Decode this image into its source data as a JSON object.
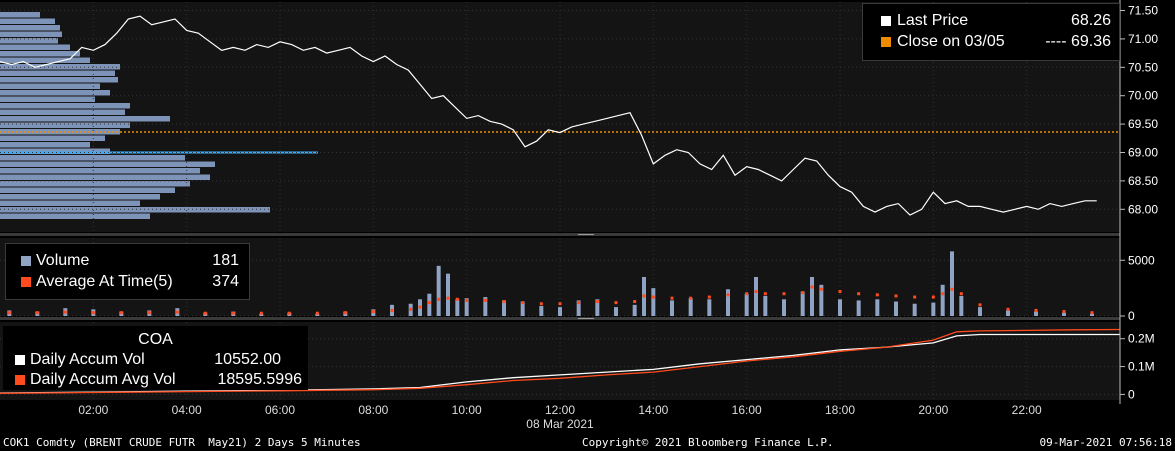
{
  "colors": {
    "background": "#000000",
    "panel_background": "#141414",
    "price_line": "#ffffff",
    "close_line": "#f08c00",
    "volume_bar": "#8fa3c4",
    "volume_avg": "#ff4b1e",
    "accum_vol": "#ffffff",
    "accum_avg": "#ff4b1e",
    "highlight": "#3ab0ff"
  },
  "legend_price": {
    "last_label": "Last Price",
    "last_value": "68.26",
    "close_label": "Close on 03/05",
    "close_value": "---- 69.36"
  },
  "legend_volume": {
    "volume_label": "Volume",
    "volume_value": "181",
    "avg_label": "Average At Time(5)",
    "avg_value": "374"
  },
  "legend_accum": {
    "title": "COA",
    "vol_label": "Daily Accum Vol",
    "vol_value": "10552.00",
    "avg_label": "Daily Accum Avg Vol",
    "avg_value": "18595.5996"
  },
  "footer": {
    "security": "COK1 Comdty (BRENT CRUDE FUTR  May21) 2 Days 5 Minutes",
    "copyright": "Copyright© 2021 Bloomberg Finance L.P.",
    "timestamp": "09-Mar-2021 07:56:18"
  },
  "chart_data": [
    {
      "type": "line",
      "panel": "price",
      "x_tick_labels": [
        "02:00",
        "04:00",
        "06:00",
        "08:00",
        "10:00",
        "12:00",
        "14:00",
        "16:00",
        "18:00",
        "20:00",
        "22:00"
      ],
      "x_date_label": "08 Mar 2021",
      "y_tick_labels": [
        "71.50",
        "71.00",
        "70.50",
        "70.00",
        "69.50",
        "69.00",
        "68.50",
        "68.00"
      ],
      "ylim": [
        67.6,
        71.65
      ],
      "xlim": [
        0,
        24
      ],
      "close_value": 69.36,
      "series": [
        {
          "name": "Last Price",
          "x": [
            0,
            0.25,
            0.5,
            0.75,
            1.0,
            1.25,
            1.5,
            1.75,
            2.0,
            2.25,
            2.5,
            2.75,
            3.0,
            3.25,
            3.5,
            3.75,
            4.0,
            4.25,
            4.5,
            4.75,
            5.0,
            5.25,
            5.5,
            5.75,
            6.0,
            6.25,
            6.5,
            6.75,
            7.0,
            7.25,
            7.5,
            7.75,
            8.0,
            8.25,
            8.5,
            8.75,
            9.0,
            9.25,
            9.5,
            9.75,
            10.0,
            10.25,
            10.5,
            10.75,
            11.0,
            11.25,
            11.5,
            11.75,
            12.0,
            12.25,
            12.5,
            12.75,
            13.0,
            13.25,
            13.5,
            13.75,
            14.0,
            14.25,
            14.5,
            14.75,
            15.0,
            15.25,
            15.5,
            15.75,
            16.0,
            16.25,
            16.5,
            16.75,
            17.0,
            17.25,
            17.5,
            17.75,
            18.0,
            18.25,
            18.5,
            18.75,
            19.0,
            19.25,
            19.5,
            19.75,
            20.0,
            20.25,
            20.5,
            20.75,
            21.0,
            21.25,
            21.5,
            21.75,
            22.0,
            22.25,
            22.5,
            22.75,
            23.0,
            23.25,
            23.5
          ],
          "values": [
            70.6,
            70.55,
            70.6,
            70.5,
            70.55,
            70.6,
            70.65,
            70.85,
            70.8,
            70.9,
            71.1,
            71.35,
            71.4,
            71.25,
            71.3,
            71.35,
            71.15,
            71.1,
            70.95,
            70.8,
            70.85,
            70.8,
            70.9,
            70.85,
            70.95,
            70.9,
            70.8,
            70.85,
            70.75,
            70.8,
            70.85,
            70.7,
            70.6,
            70.7,
            70.55,
            70.45,
            70.2,
            69.95,
            70.0,
            69.8,
            69.6,
            69.65,
            69.55,
            69.5,
            69.4,
            69.1,
            69.2,
            69.4,
            69.35,
            69.45,
            69.5,
            69.55,
            69.6,
            69.65,
            69.7,
            69.3,
            68.8,
            68.95,
            69.05,
            69.0,
            68.8,
            68.7,
            68.95,
            68.6,
            68.75,
            68.7,
            68.6,
            68.5,
            68.7,
            68.9,
            68.85,
            68.6,
            68.4,
            68.3,
            68.05,
            67.95,
            68.05,
            68.1,
            67.9,
            68.0,
            68.3,
            68.1,
            68.15,
            68.05,
            68.05,
            68.0,
            67.95,
            68.0,
            68.05,
            68.0,
            68.1,
            68.05,
            68.1,
            68.15,
            68.15
          ]
        }
      ]
    },
    {
      "type": "bar",
      "panel": "volume",
      "y_tick_labels": [
        "5000",
        "0"
      ],
      "ylim": [
        0,
        7000
      ],
      "series": [
        {
          "name": "Volume",
          "x": [
            0.2,
            0.8,
            1.4,
            2.0,
            2.6,
            3.2,
            3.8,
            4.4,
            5.0,
            5.6,
            6.2,
            6.8,
            7.4,
            8.0,
            8.4,
            8.8,
            9.0,
            9.2,
            9.4,
            9.6,
            9.8,
            10.0,
            10.4,
            10.8,
            11.2,
            11.6,
            12.0,
            12.4,
            12.8,
            13.2,
            13.6,
            13.8,
            14.0,
            14.4,
            14.8,
            15.2,
            15.6,
            16.0,
            16.2,
            16.4,
            16.8,
            17.2,
            17.4,
            17.6,
            18.0,
            18.4,
            18.8,
            19.2,
            19.6,
            20.0,
            20.2,
            20.4,
            20.6,
            21.0,
            21.6,
            22.2,
            22.8,
            23.4
          ],
          "values": [
            500,
            400,
            700,
            600,
            400,
            500,
            700,
            300,
            400,
            200,
            300,
            200,
            400,
            600,
            1000,
            1100,
            1500,
            2000,
            4500,
            3800,
            1500,
            1600,
            1700,
            1400,
            1300,
            900,
            800,
            1400,
            1500,
            800,
            1000,
            3500,
            2500,
            1400,
            1600,
            1500,
            2400,
            2000,
            3500,
            1800,
            1500,
            2200,
            3500,
            2800,
            1500,
            1400,
            1500,
            1300,
            1100,
            1200,
            2800,
            5800,
            1800,
            800,
            500,
            400,
            300,
            200
          ]
        },
        {
          "name": "Average At Time(5)",
          "x": [
            0.2,
            0.8,
            1.4,
            2.0,
            2.6,
            3.2,
            3.8,
            4.4,
            5.0,
            5.6,
            6.2,
            6.8,
            7.4,
            8.0,
            8.4,
            8.8,
            9.0,
            9.2,
            9.4,
            9.6,
            9.8,
            10.0,
            10.4,
            10.8,
            11.2,
            11.6,
            12.0,
            12.4,
            12.8,
            13.2,
            13.6,
            13.8,
            14.0,
            14.4,
            14.8,
            15.2,
            15.6,
            16.0,
            16.2,
            16.4,
            16.8,
            17.2,
            17.4,
            17.6,
            18.0,
            18.4,
            18.8,
            19.2,
            19.6,
            20.0,
            20.2,
            20.4,
            20.6,
            21.0,
            21.6,
            22.2,
            22.8,
            23.4
          ],
          "values": [
            300,
            300,
            350,
            300,
            300,
            300,
            350,
            250,
            250,
            250,
            250,
            250,
            300,
            400,
            500,
            600,
            800,
            1200,
            1500,
            1600,
            1500,
            1400,
            1400,
            1300,
            1200,
            1100,
            1100,
            1200,
            1300,
            1200,
            1300,
            1800,
            1700,
            1600,
            1600,
            1700,
            1900,
            2000,
            2200,
            2000,
            2000,
            2100,
            2600,
            2400,
            2200,
            2000,
            1900,
            1800,
            1700,
            1700,
            2000,
            2400,
            2000,
            1000,
            600,
            500,
            400,
            300
          ]
        }
      ]
    },
    {
      "type": "line",
      "panel": "accumulated volume",
      "y_tick_labels": [
        "0.2M",
        "0.1M",
        "0"
      ],
      "ylim": [
        -0.02,
        0.26
      ],
      "series": [
        {
          "name": "Daily Accum Vol",
          "x": [
            0,
            2,
            4,
            6,
            8,
            9,
            10,
            11,
            12,
            13,
            14,
            15,
            16,
            17,
            18,
            19,
            20,
            20.5,
            21,
            22,
            23,
            24
          ],
          "values": [
            0.005,
            0.008,
            0.012,
            0.015,
            0.02,
            0.025,
            0.045,
            0.06,
            0.07,
            0.08,
            0.09,
            0.11,
            0.125,
            0.14,
            0.16,
            0.17,
            0.185,
            0.21,
            0.215,
            0.215,
            0.215,
            0.215
          ]
        },
        {
          "name": "Daily Accum Avg Vol",
          "x": [
            0,
            2,
            4,
            6,
            8,
            9,
            10,
            11,
            12,
            13,
            14,
            15,
            16,
            17,
            18,
            19,
            20,
            20.5,
            21,
            22,
            23,
            24
          ],
          "values": [
            0.004,
            0.007,
            0.01,
            0.013,
            0.017,
            0.022,
            0.035,
            0.05,
            0.058,
            0.07,
            0.08,
            0.1,
            0.12,
            0.135,
            0.155,
            0.17,
            0.195,
            0.225,
            0.228,
            0.23,
            0.232,
            0.233
          ]
        }
      ]
    }
  ]
}
